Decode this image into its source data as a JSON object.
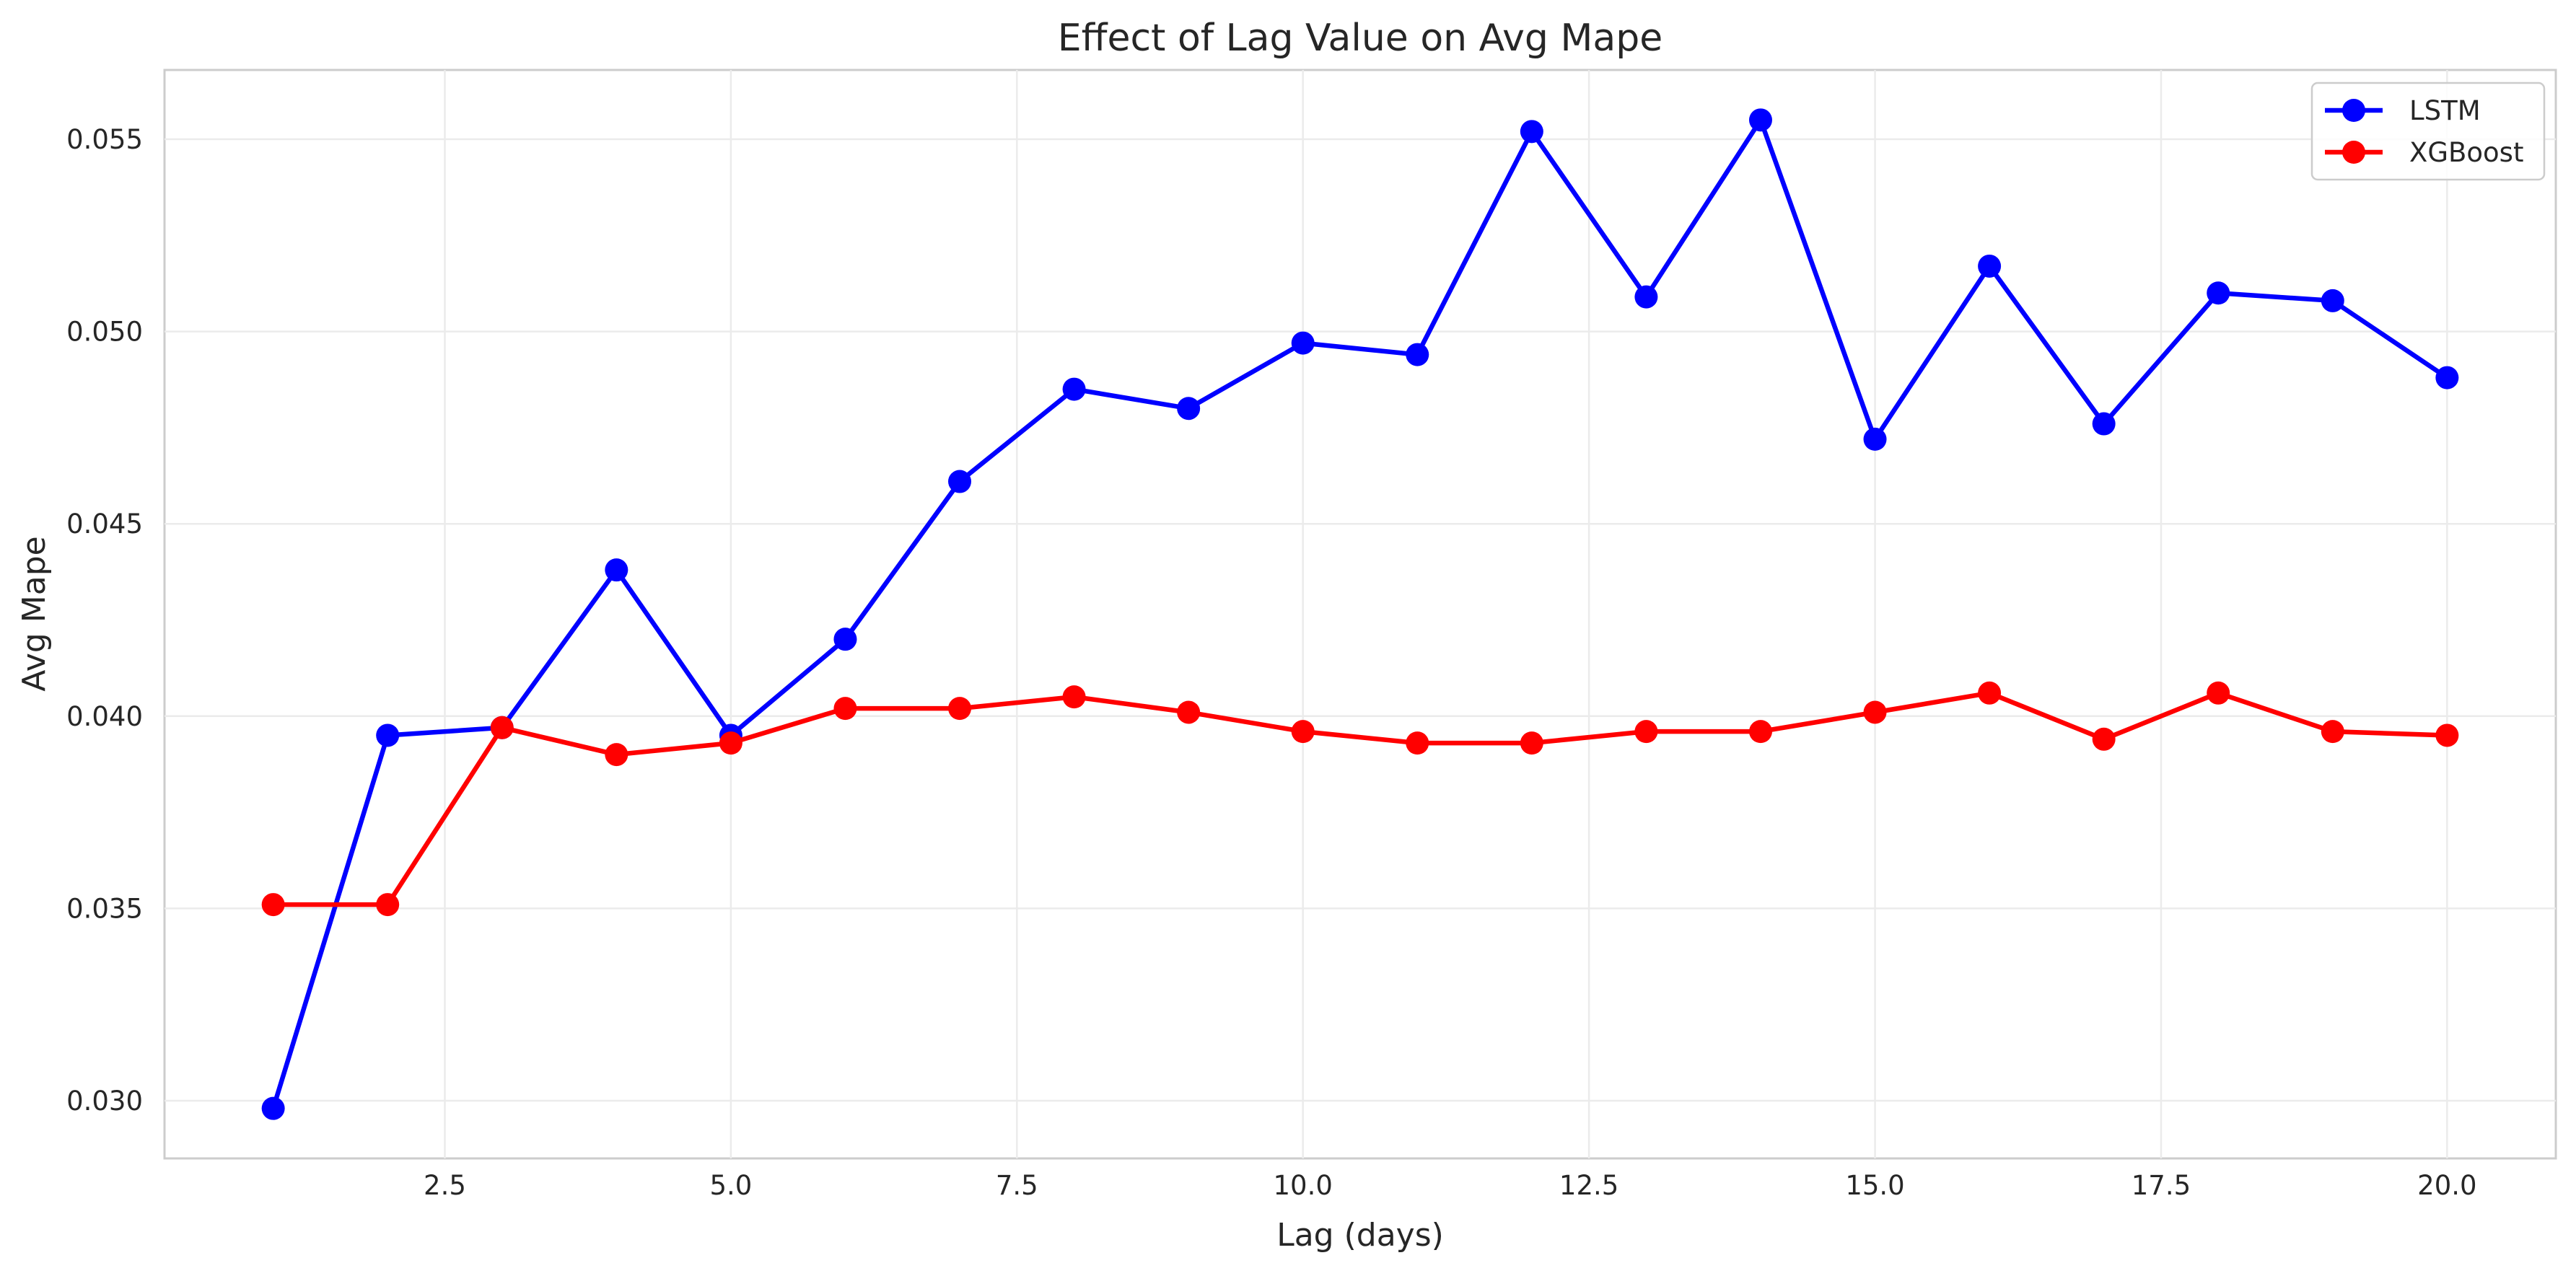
{
  "chart_data": {
    "type": "line",
    "title": "Effect of Lag Value on Avg Mape",
    "xlabel": "Lag (days)",
    "ylabel": "Avg Mape",
    "xlim": [
      0.05,
      20.95
    ],
    "ylim": [
      0.0285,
      0.0568
    ],
    "xticks": [
      2.5,
      5.0,
      7.5,
      10.0,
      12.5,
      15.0,
      17.5,
      20.0
    ],
    "xtick_labels": [
      "2.5",
      "5.0",
      "7.5",
      "10.0",
      "12.5",
      "15.0",
      "17.5",
      "20.0"
    ],
    "yticks": [
      0.03,
      0.035,
      0.04,
      0.045,
      0.05,
      0.055
    ],
    "ytick_labels": [
      "0.030",
      "0.035",
      "0.040",
      "0.045",
      "0.050",
      "0.055"
    ],
    "grid": true,
    "legend_position": "top-right",
    "x": [
      1,
      2,
      3,
      4,
      5,
      6,
      7,
      8,
      9,
      10,
      11,
      12,
      13,
      14,
      15,
      16,
      17,
      18,
      19,
      20
    ],
    "series": [
      {
        "name": "LSTM",
        "color": "#0000ff",
        "marker": "circle",
        "values": [
          0.0298,
          0.0395,
          0.0397,
          0.0438,
          0.0395,
          0.042,
          0.0461,
          0.0485,
          0.048,
          0.0497,
          0.0494,
          0.0552,
          0.0509,
          0.0555,
          0.0472,
          0.0517,
          0.0476,
          0.051,
          0.0508,
          0.0488
        ]
      },
      {
        "name": "XGBoost",
        "color": "#ff0000",
        "marker": "circle",
        "values": [
          0.0351,
          0.0351,
          0.0397,
          0.039,
          0.0393,
          0.0402,
          0.0402,
          0.0405,
          0.0401,
          0.0396,
          0.0393,
          0.0393,
          0.0396,
          0.0396,
          0.0401,
          0.0406,
          0.0394,
          0.0406,
          0.0396,
          0.0395
        ]
      }
    ]
  }
}
